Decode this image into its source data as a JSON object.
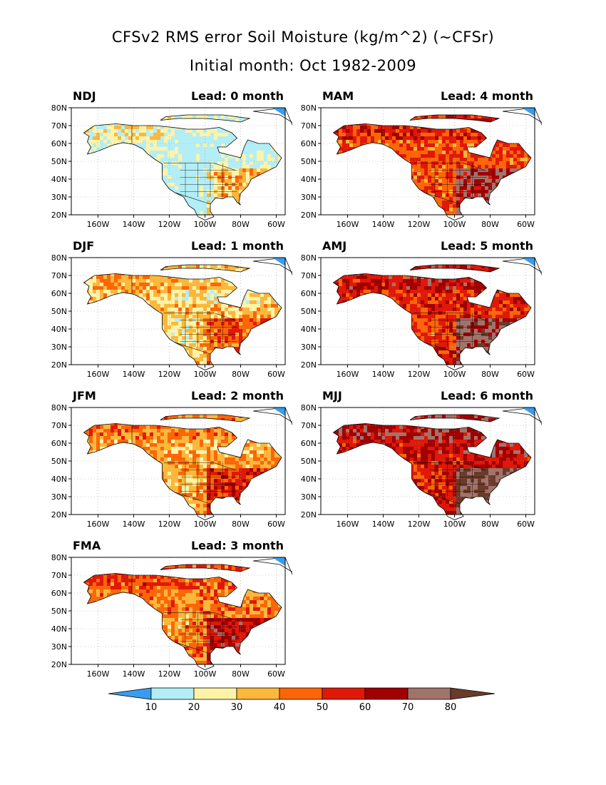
{
  "title": "CFSv2 RMS error Soil Moisture (kg/m^2) (~CFSr)",
  "subtitle": "Initial month: Oct 1982-2009",
  "panels": [
    {
      "season": "NDJ",
      "lead": "Lead: 0 month",
      "level": 0
    },
    {
      "season": "MAM",
      "lead": "Lead: 4 month",
      "level": 4
    },
    {
      "season": "DJF",
      "lead": "Lead: 1 month",
      "level": 1
    },
    {
      "season": "AMJ",
      "lead": "Lead: 5 month",
      "level": 5
    },
    {
      "season": "JFM",
      "lead": "Lead: 2 month",
      "level": 2
    },
    {
      "season": "MJJ",
      "lead": "Lead: 6 month",
      "level": 6
    },
    {
      "season": "FMA",
      "lead": "Lead: 3 month",
      "level": 3
    }
  ],
  "axes": {
    "lat_labels": [
      "80N",
      "70N",
      "60N",
      "50N",
      "40N",
      "30N",
      "20N"
    ],
    "lon_labels": [
      "160W",
      "140W",
      "120W",
      "100W",
      "80W",
      "60W"
    ]
  },
  "colorbar": {
    "colors": [
      "#3a9cf0",
      "#b3eef6",
      "#fff3a8",
      "#fbb83c",
      "#fd6607",
      "#e01808",
      "#a10000",
      "#a2736b",
      "#6a3b2a"
    ],
    "labels": [
      "10",
      "20",
      "30",
      "40",
      "50",
      "60",
      "70",
      "80"
    ]
  }
}
